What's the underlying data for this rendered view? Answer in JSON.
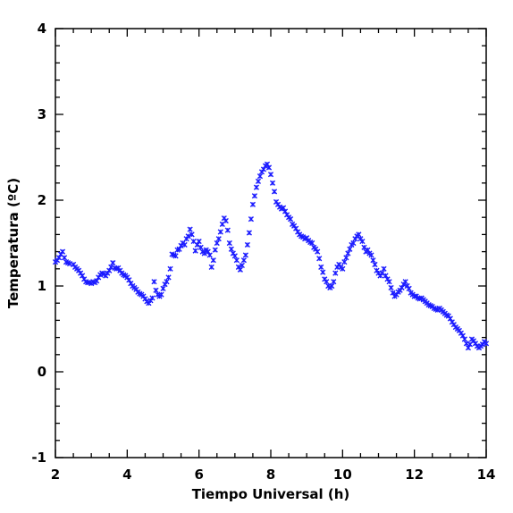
{
  "chart_data": {
    "type": "scatter",
    "xlabel": "Tiempo Universal (h)",
    "ylabel": "Temperatura (ºC)",
    "xlim": [
      2,
      14
    ],
    "ylim": [
      -1,
      4
    ],
    "x_ticks": [
      "2",
      "4",
      "6",
      "8",
      "10",
      "12",
      "14"
    ],
    "y_ticks": [
      "-1",
      "0",
      "1",
      "2",
      "3",
      "4"
    ],
    "marker": "x",
    "marker_color": "#1a1aff",
    "series": [
      {
        "points": [
          [
            2.0,
            1.28
          ],
          [
            2.05,
            1.3
          ],
          [
            2.1,
            1.33
          ],
          [
            2.15,
            1.37
          ],
          [
            2.2,
            1.4
          ],
          [
            2.25,
            1.33
          ],
          [
            2.3,
            1.28
          ],
          [
            2.35,
            1.27
          ],
          [
            2.4,
            1.26
          ],
          [
            2.5,
            1.25
          ],
          [
            2.55,
            1.22
          ],
          [
            2.6,
            1.2
          ],
          [
            2.65,
            1.18
          ],
          [
            2.7,
            1.15
          ],
          [
            2.75,
            1.12
          ],
          [
            2.8,
            1.08
          ],
          [
            2.85,
            1.05
          ],
          [
            2.9,
            1.04
          ],
          [
            2.95,
            1.04
          ],
          [
            3.0,
            1.03
          ],
          [
            3.05,
            1.05
          ],
          [
            3.1,
            1.04
          ],
          [
            3.15,
            1.06
          ],
          [
            3.2,
            1.1
          ],
          [
            3.25,
            1.13
          ],
          [
            3.3,
            1.15
          ],
          [
            3.35,
            1.14
          ],
          [
            3.4,
            1.12
          ],
          [
            3.45,
            1.15
          ],
          [
            3.5,
            1.18
          ],
          [
            3.55,
            1.22
          ],
          [
            3.6,
            1.27
          ],
          [
            3.65,
            1.21
          ],
          [
            3.7,
            1.2
          ],
          [
            3.75,
            1.21
          ],
          [
            3.8,
            1.18
          ],
          [
            3.85,
            1.15
          ],
          [
            3.9,
            1.13
          ],
          [
            3.95,
            1.12
          ],
          [
            4.0,
            1.1
          ],
          [
            4.05,
            1.07
          ],
          [
            4.1,
            1.03
          ],
          [
            4.15,
            1.0
          ],
          [
            4.2,
            0.98
          ],
          [
            4.25,
            0.96
          ],
          [
            4.3,
            0.93
          ],
          [
            4.35,
            0.91
          ],
          [
            4.4,
            0.9
          ],
          [
            4.45,
            0.88
          ],
          [
            4.5,
            0.85
          ],
          [
            4.55,
            0.82
          ],
          [
            4.6,
            0.8
          ],
          [
            4.65,
            0.83
          ],
          [
            4.7,
            0.86
          ],
          [
            4.75,
            1.05
          ],
          [
            4.8,
            0.95
          ],
          [
            4.85,
            0.9
          ],
          [
            4.9,
            0.88
          ],
          [
            4.95,
            0.9
          ],
          [
            5.0,
            0.97
          ],
          [
            5.05,
            1.02
          ],
          [
            5.1,
            1.05
          ],
          [
            5.15,
            1.1
          ],
          [
            5.2,
            1.2
          ],
          [
            5.25,
            1.37
          ],
          [
            5.3,
            1.36
          ],
          [
            5.35,
            1.35
          ],
          [
            5.4,
            1.42
          ],
          [
            5.45,
            1.43
          ],
          [
            5.5,
            1.47
          ],
          [
            5.55,
            1.5
          ],
          [
            5.6,
            1.48
          ],
          [
            5.65,
            1.55
          ],
          [
            5.7,
            1.58
          ],
          [
            5.75,
            1.66
          ],
          [
            5.8,
            1.6
          ],
          [
            5.85,
            1.52
          ],
          [
            5.9,
            1.41
          ],
          [
            5.95,
            1.48
          ],
          [
            6.0,
            1.52
          ],
          [
            6.05,
            1.45
          ],
          [
            6.1,
            1.4
          ],
          [
            6.15,
            1.38
          ],
          [
            6.2,
            1.42
          ],
          [
            6.25,
            1.4
          ],
          [
            6.3,
            1.36
          ],
          [
            6.35,
            1.22
          ],
          [
            6.4,
            1.3
          ],
          [
            6.45,
            1.42
          ],
          [
            6.5,
            1.5
          ],
          [
            6.55,
            1.55
          ],
          [
            6.6,
            1.63
          ],
          [
            6.65,
            1.72
          ],
          [
            6.7,
            1.79
          ],
          [
            6.75,
            1.76
          ],
          [
            6.8,
            1.65
          ],
          [
            6.85,
            1.5
          ],
          [
            6.9,
            1.43
          ],
          [
            6.95,
            1.38
          ],
          [
            7.0,
            1.35
          ],
          [
            7.05,
            1.3
          ],
          [
            7.1,
            1.22
          ],
          [
            7.15,
            1.19
          ],
          [
            7.2,
            1.24
          ],
          [
            7.25,
            1.3
          ],
          [
            7.3,
            1.36
          ],
          [
            7.35,
            1.48
          ],
          [
            7.4,
            1.62
          ],
          [
            7.45,
            1.78
          ],
          [
            7.5,
            1.95
          ],
          [
            7.55,
            2.05
          ],
          [
            7.6,
            2.15
          ],
          [
            7.65,
            2.22
          ],
          [
            7.7,
            2.28
          ],
          [
            7.75,
            2.33
          ],
          [
            7.8,
            2.36
          ],
          [
            7.85,
            2.4
          ],
          [
            7.9,
            2.42
          ],
          [
            7.95,
            2.38
          ],
          [
            8.0,
            2.3
          ],
          [
            8.05,
            2.2
          ],
          [
            8.1,
            2.1
          ],
          [
            8.15,
            1.98
          ],
          [
            8.2,
            1.95
          ],
          [
            8.25,
            1.92
          ],
          [
            8.3,
            1.9
          ],
          [
            8.35,
            1.91
          ],
          [
            8.4,
            1.87
          ],
          [
            8.45,
            1.83
          ],
          [
            8.5,
            1.8
          ],
          [
            8.55,
            1.78
          ],
          [
            8.6,
            1.72
          ],
          [
            8.65,
            1.7
          ],
          [
            8.7,
            1.67
          ],
          [
            8.75,
            1.63
          ],
          [
            8.8,
            1.6
          ],
          [
            8.85,
            1.58
          ],
          [
            8.9,
            1.57
          ],
          [
            8.95,
            1.55
          ],
          [
            9.0,
            1.56
          ],
          [
            9.05,
            1.53
          ],
          [
            9.1,
            1.51
          ],
          [
            9.15,
            1.5
          ],
          [
            9.2,
            1.45
          ],
          [
            9.25,
            1.43
          ],
          [
            9.3,
            1.4
          ],
          [
            9.35,
            1.32
          ],
          [
            9.4,
            1.22
          ],
          [
            9.45,
            1.16
          ],
          [
            9.5,
            1.08
          ],
          [
            9.55,
            1.05
          ],
          [
            9.6,
            1.0
          ],
          [
            9.65,
            0.98
          ],
          [
            9.7,
            1.0
          ],
          [
            9.75,
            1.05
          ],
          [
            9.8,
            1.15
          ],
          [
            9.85,
            1.22
          ],
          [
            9.9,
            1.25
          ],
          [
            9.95,
            1.22
          ],
          [
            10.0,
            1.2
          ],
          [
            10.05,
            1.28
          ],
          [
            10.1,
            1.33
          ],
          [
            10.15,
            1.38
          ],
          [
            10.2,
            1.43
          ],
          [
            10.25,
            1.48
          ],
          [
            10.3,
            1.5
          ],
          [
            10.35,
            1.55
          ],
          [
            10.4,
            1.58
          ],
          [
            10.45,
            1.6
          ],
          [
            10.5,
            1.55
          ],
          [
            10.55,
            1.52
          ],
          [
            10.6,
            1.45
          ],
          [
            10.65,
            1.4
          ],
          [
            10.7,
            1.42
          ],
          [
            10.75,
            1.38
          ],
          [
            10.8,
            1.36
          ],
          [
            10.85,
            1.3
          ],
          [
            10.9,
            1.25
          ],
          [
            10.95,
            1.18
          ],
          [
            11.0,
            1.15
          ],
          [
            11.05,
            1.12
          ],
          [
            11.1,
            1.15
          ],
          [
            11.15,
            1.2
          ],
          [
            11.2,
            1.12
          ],
          [
            11.25,
            1.08
          ],
          [
            11.3,
            1.05
          ],
          [
            11.35,
            0.98
          ],
          [
            11.4,
            0.92
          ],
          [
            11.45,
            0.88
          ],
          [
            11.5,
            0.9
          ],
          [
            11.55,
            0.93
          ],
          [
            11.6,
            0.95
          ],
          [
            11.65,
            0.98
          ],
          [
            11.7,
            1.02
          ],
          [
            11.75,
            1.05
          ],
          [
            11.8,
            1.0
          ],
          [
            11.85,
            0.97
          ],
          [
            11.9,
            0.92
          ],
          [
            11.95,
            0.9
          ],
          [
            12.0,
            0.88
          ],
          [
            12.05,
            0.88
          ],
          [
            12.1,
            0.86
          ],
          [
            12.15,
            0.85
          ],
          [
            12.2,
            0.86
          ],
          [
            12.25,
            0.84
          ],
          [
            12.3,
            0.82
          ],
          [
            12.35,
            0.8
          ],
          [
            12.4,
            0.78
          ],
          [
            12.45,
            0.77
          ],
          [
            12.5,
            0.76
          ],
          [
            12.55,
            0.74
          ],
          [
            12.6,
            0.73
          ],
          [
            12.65,
            0.72
          ],
          [
            12.7,
            0.74
          ],
          [
            12.75,
            0.72
          ],
          [
            12.8,
            0.7
          ],
          [
            12.85,
            0.68
          ],
          [
            12.9,
            0.66
          ],
          [
            12.95,
            0.65
          ],
          [
            13.0,
            0.62
          ],
          [
            13.05,
            0.58
          ],
          [
            13.1,
            0.55
          ],
          [
            13.15,
            0.52
          ],
          [
            13.2,
            0.5
          ],
          [
            13.25,
            0.48
          ],
          [
            13.3,
            0.45
          ],
          [
            13.35,
            0.42
          ],
          [
            13.4,
            0.38
          ],
          [
            13.45,
            0.33
          ],
          [
            13.5,
            0.28
          ],
          [
            13.55,
            0.32
          ],
          [
            13.6,
            0.38
          ],
          [
            13.65,
            0.36
          ],
          [
            13.7,
            0.33
          ],
          [
            13.75,
            0.3
          ],
          [
            13.8,
            0.28
          ],
          [
            13.85,
            0.3
          ],
          [
            13.9,
            0.32
          ],
          [
            13.95,
            0.35
          ],
          [
            14.0,
            0.33
          ]
        ]
      }
    ]
  }
}
